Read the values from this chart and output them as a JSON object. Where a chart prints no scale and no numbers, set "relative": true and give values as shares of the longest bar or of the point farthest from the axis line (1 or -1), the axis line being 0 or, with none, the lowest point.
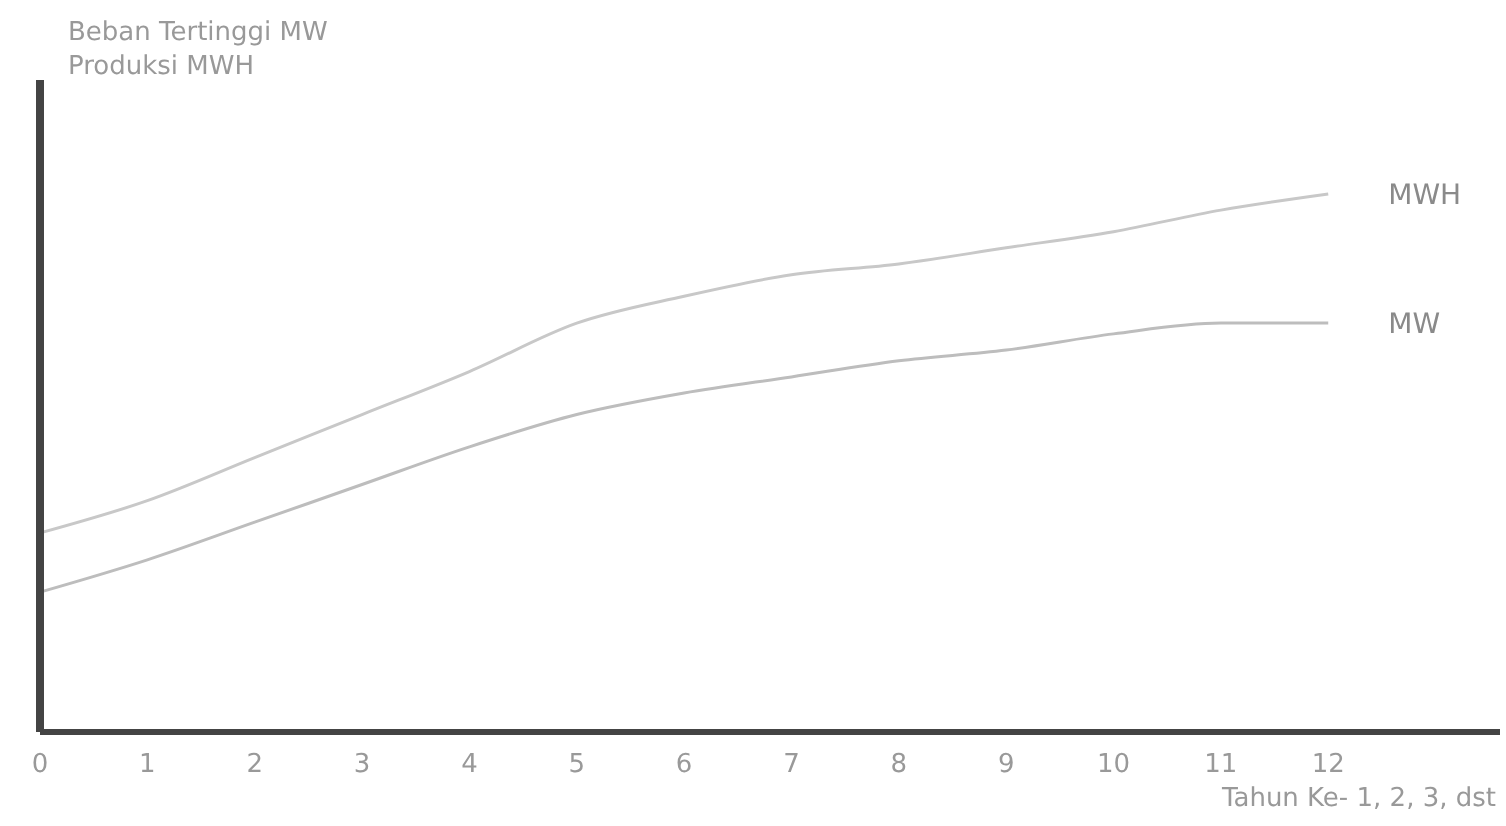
{
  "chart_data": {
    "type": "line",
    "relative": true,
    "ylabel": "Beban Tertinggi MW\nProduksi MWH",
    "xlabel": "Tahun Ke- 1, 2, 3, dst",
    "x": [
      0,
      1,
      2,
      3,
      4,
      5,
      6,
      7,
      8,
      9,
      10,
      11,
      12
    ],
    "xlim": [
      0,
      13.6
    ],
    "xticks": [
      0,
      1,
      2,
      3,
      4,
      5,
      6,
      7,
      8,
      9,
      10,
      11,
      12
    ],
    "series": [
      {
        "name": "MWH",
        "color": "#c8c8c8",
        "values": [
          0.37,
          0.43,
          0.51,
          0.59,
          0.67,
          0.76,
          0.81,
          0.85,
          0.87,
          0.9,
          0.93,
          0.97,
          1
        ]
      },
      {
        "name": "MW",
        "color": "#bdbdbd",
        "values": [
          0.26,
          0.32,
          0.39,
          0.46,
          0.53,
          0.59,
          0.63,
          0.66,
          0.69,
          0.71,
          0.74,
          0.76,
          0.76
        ]
      }
    ]
  }
}
